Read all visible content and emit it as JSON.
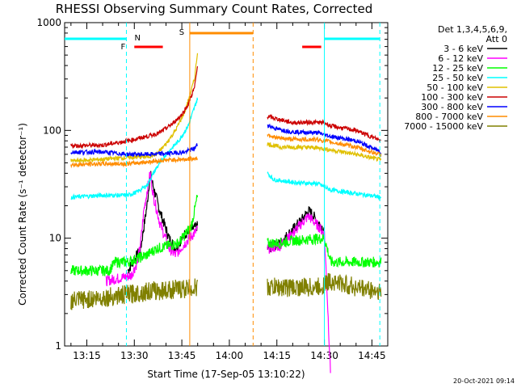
{
  "chart_data": {
    "type": "line",
    "title": "RHESSI Observing Summary Count Rates, Corrected",
    "xlabel": "Start Time (17-Sep-05 13:10:22)",
    "ylabel": "Corrected Count Rate (s⁻¹ detector⁻¹)",
    "yscale": "log",
    "ylim": [
      1,
      1000
    ],
    "xlim_minutes": [
      -2,
      100
    ],
    "x_ticks": [
      {
        "t": 5,
        "label": "13:15"
      },
      {
        "t": 20,
        "label": "13:30"
      },
      {
        "t": 35,
        "label": "13:45"
      },
      {
        "t": 50,
        "label": "14:00"
      },
      {
        "t": 65,
        "label": "14:15"
      },
      {
        "t": 80,
        "label": "14:30"
      },
      {
        "t": 95,
        "label": "14:45"
      }
    ],
    "y_ticks": [
      {
        "v": 1,
        "label": "1"
      },
      {
        "v": 10,
        "label": "10"
      },
      {
        "v": 100,
        "label": "100"
      },
      {
        "v": 1000,
        "label": "1000"
      }
    ],
    "legend_header": [
      "Det 1,3,4,5,6,9,",
      "Att 0"
    ],
    "series": [
      {
        "name": "3 - 6 keV",
        "color": "#000000",
        "points": [
          [
            18,
            5
          ],
          [
            22,
            8
          ],
          [
            24,
            20
          ],
          [
            25,
            40
          ],
          [
            26,
            30
          ],
          [
            28,
            18
          ],
          [
            31,
            10
          ],
          [
            33,
            8
          ],
          [
            36,
            11
          ],
          [
            40,
            13
          ]
        ],
        "points2": [
          [
            62,
            8
          ],
          [
            66,
            9
          ],
          [
            70,
            12
          ],
          [
            73,
            15
          ],
          [
            75,
            18
          ],
          [
            76,
            17
          ],
          [
            78,
            14
          ],
          [
            80,
            12
          ]
        ]
      },
      {
        "name": "6 - 12 keV",
        "color": "#ff00ff",
        "points": [
          [
            11,
            4
          ],
          [
            19,
            4.5
          ],
          [
            21,
            6
          ],
          [
            22,
            9
          ],
          [
            23,
            18
          ],
          [
            25,
            40
          ],
          [
            26,
            25
          ],
          [
            28,
            14
          ],
          [
            31,
            8
          ],
          [
            33,
            7
          ],
          [
            36,
            9
          ],
          [
            40,
            12
          ]
        ],
        "points2": [
          [
            62,
            8
          ],
          [
            66,
            8.5
          ],
          [
            70,
            11
          ],
          [
            73,
            14
          ],
          [
            75,
            16
          ],
          [
            78,
            13
          ],
          [
            80,
            11
          ],
          [
            81,
            2.5
          ],
          [
            82,
            0.5
          ]
        ]
      },
      {
        "name": "12 - 25 keV",
        "color": "#00ff00",
        "points": [
          [
            0,
            5
          ],
          [
            12,
            5
          ],
          [
            14,
            6
          ],
          [
            18,
            6
          ],
          [
            24,
            7
          ],
          [
            27,
            8
          ],
          [
            34,
            9
          ],
          [
            38,
            13
          ],
          [
            40,
            25
          ]
        ],
        "points2": [
          [
            62,
            9
          ],
          [
            66,
            9
          ],
          [
            70,
            9.5
          ],
          [
            80,
            10
          ],
          [
            82,
            6
          ],
          [
            98,
            6
          ]
        ]
      },
      {
        "name": "25 - 50 keV",
        "color": "#00ffff",
        "points": [
          [
            0,
            24
          ],
          [
            10,
            25
          ],
          [
            18,
            25
          ],
          [
            21,
            27
          ],
          [
            24,
            31
          ],
          [
            27,
            45
          ],
          [
            30,
            60
          ],
          [
            34,
            80
          ],
          [
            37,
            110
          ],
          [
            40,
            200
          ]
        ],
        "points2": [
          [
            62,
            40
          ],
          [
            64,
            35
          ],
          [
            70,
            33
          ],
          [
            78,
            32
          ],
          [
            82,
            28
          ],
          [
            98,
            24
          ]
        ]
      },
      {
        "name": "50 - 100 keV",
        "color": "#e0c000",
        "points": [
          [
            0,
            52
          ],
          [
            10,
            54
          ],
          [
            18,
            56
          ],
          [
            24,
            57
          ],
          [
            27,
            60
          ],
          [
            30,
            75
          ],
          [
            33,
            100
          ],
          [
            36,
            150
          ],
          [
            39,
            300
          ],
          [
            40,
            550
          ]
        ],
        "points2": [
          [
            62,
            75
          ],
          [
            66,
            70
          ],
          [
            72,
            70
          ],
          [
            78,
            69
          ],
          [
            82,
            66
          ],
          [
            90,
            60
          ],
          [
            98,
            53
          ]
        ]
      },
      {
        "name": "100 - 300 keV",
        "color": "#cc0000",
        "points": [
          [
            0,
            72
          ],
          [
            10,
            73
          ],
          [
            18,
            80
          ],
          [
            24,
            88
          ],
          [
            28,
            95
          ],
          [
            32,
            115
          ],
          [
            35,
            140
          ],
          [
            37,
            175
          ],
          [
            39,
            250
          ],
          [
            40,
            400
          ]
        ],
        "points2": [
          [
            62,
            135
          ],
          [
            65,
            128
          ],
          [
            70,
            118
          ],
          [
            76,
            119
          ],
          [
            80,
            118
          ],
          [
            82,
            110
          ],
          [
            90,
            100
          ],
          [
            98,
            80
          ]
        ]
      },
      {
        "name": "300 - 800 keV",
        "color": "#0000ff",
        "points": [
          [
            0,
            63
          ],
          [
            10,
            63
          ],
          [
            18,
            60
          ],
          [
            24,
            60
          ],
          [
            30,
            61
          ],
          [
            36,
            63
          ],
          [
            39,
            68
          ],
          [
            40,
            75
          ]
        ],
        "points2": [
          [
            62,
            112
          ],
          [
            65,
            103
          ],
          [
            70,
            97
          ],
          [
            78,
            95
          ],
          [
            82,
            88
          ],
          [
            90,
            80
          ],
          [
            98,
            63
          ]
        ]
      },
      {
        "name": "800 - 7000 keV",
        "color": "#ff8c00",
        "points": [
          [
            0,
            48
          ],
          [
            10,
            49
          ],
          [
            18,
            49
          ],
          [
            24,
            51
          ],
          [
            30,
            53
          ],
          [
            36,
            54
          ],
          [
            40,
            55
          ]
        ],
        "points2": [
          [
            62,
            92
          ],
          [
            65,
            85
          ],
          [
            70,
            83
          ],
          [
            78,
            82
          ],
          [
            82,
            78
          ],
          [
            90,
            70
          ],
          [
            98,
            59
          ]
        ]
      },
      {
        "name": "7000 - 15000 keV",
        "color": "#808000",
        "points": [
          [
            0,
            2.6
          ],
          [
            10,
            2.8
          ],
          [
            18,
            3.0
          ],
          [
            24,
            3.2
          ],
          [
            30,
            3.3
          ],
          [
            36,
            3.4
          ],
          [
            40,
            3.5
          ]
        ],
        "points2": [
          [
            62,
            3.5
          ],
          [
            70,
            3.5
          ],
          [
            78,
            3.5
          ],
          [
            82,
            4.0
          ],
          [
            90,
            3.5
          ],
          [
            98,
            3.2
          ]
        ]
      }
    ],
    "annotations": {
      "night_bars": [
        {
          "t0": -2,
          "t1": 17.5
        },
        {
          "t0": 80,
          "t1": 97.5
        }
      ],
      "saa_bar": {
        "t0": 37.5,
        "t1": 57.5
      },
      "flare_bars": [
        {
          "t0": 20,
          "t1": 29
        },
        {
          "t0": 73,
          "t1": 79
        }
      ],
      "markers": [
        {
          "t": 21,
          "label": "N",
          "color": "#00ffff"
        },
        {
          "t": 37,
          "label": "S",
          "color": "#ff8c00"
        },
        {
          "t": 18,
          "label": "F",
          "color": "#ff0000"
        }
      ],
      "vlines": [
        {
          "t": 17.5,
          "color": "#00ffff",
          "dash": true
        },
        {
          "t": 37.5,
          "color": "#ff8c00",
          "dash": false
        },
        {
          "t": 57.5,
          "color": "#ff8c00",
          "dash": true
        },
        {
          "t": 80,
          "color": "#00ffff",
          "dash": false
        },
        {
          "t": 97.5,
          "color": "#00ffff",
          "dash": true
        }
      ]
    }
  },
  "timestamp": "20-Oct-2021 09:14"
}
